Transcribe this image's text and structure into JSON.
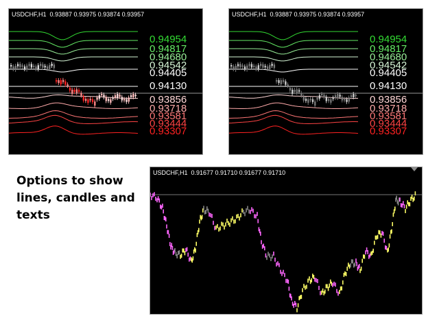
{
  "panels": [
    {
      "header": "USDCHF,H1  0.93887 0.93975 0.93874 0.93957",
      "levels": [
        {
          "value": "0.94954",
          "color": "#33dd33"
        },
        {
          "value": "0.94817",
          "color": "#66ee66"
        },
        {
          "value": "0.94680",
          "color": "#99f099"
        },
        {
          "value": "0.94542",
          "color": "#d8f8d8"
        },
        {
          "value": "0.94405",
          "color": "#ffffff"
        },
        {
          "value": "0.94130",
          "color": "#ffffff"
        },
        {
          "value": "0.93856",
          "color": "#ffd6d6"
        },
        {
          "value": "0.93718",
          "color": "#ffaaaa"
        },
        {
          "value": "0.93581",
          "color": "#ff7777"
        },
        {
          "value": "0.93444",
          "color": "#ff4444"
        },
        {
          "value": "0.93307",
          "color": "#ff2222"
        }
      ],
      "candle_mode": "colored"
    },
    {
      "header": "USDCHF,H1  0.93887 0.93975 0.93874 0.93957",
      "levels": [
        {
          "value": "0.94954",
          "color": "#33dd33"
        },
        {
          "value": "0.94817",
          "color": "#66ee66"
        },
        {
          "value": "0.94680",
          "color": "#99f099"
        },
        {
          "value": "0.94542",
          "color": "#d8f8d8"
        },
        {
          "value": "0.94405",
          "color": "#ffffff"
        },
        {
          "value": "0.94130",
          "color": "#ffffff"
        },
        {
          "value": "0.93856",
          "color": "#ffd6d6"
        },
        {
          "value": "0.93718",
          "color": "#ffaaaa"
        },
        {
          "value": "0.93581",
          "color": "#ff7777"
        },
        {
          "value": "0.93444",
          "color": "#ff4444"
        },
        {
          "value": "0.93307",
          "color": "#ff2222"
        }
      ],
      "candle_mode": "gray"
    },
    {
      "header": "USDCHF,H1  0.91677 0.91710 0.91677 0.91710",
      "segment_colors": [
        "#ff66ff",
        "#ffff66",
        "#888888"
      ]
    }
  ],
  "caption": "Options to show lines, candles and texts"
}
